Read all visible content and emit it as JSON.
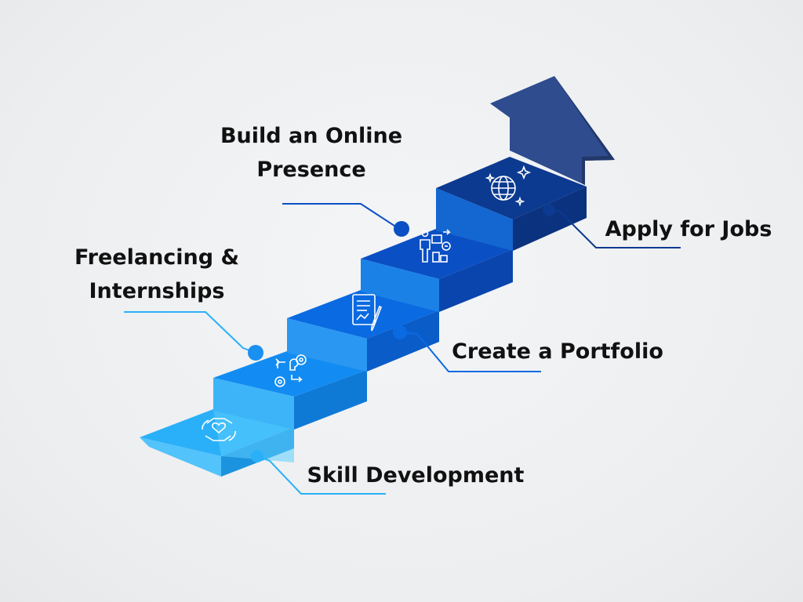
{
  "steps": [
    {
      "label_lines": [
        "Skill Development"
      ],
      "icon": "hands-heart-icon",
      "color": "#2ab0f8"
    },
    {
      "label_lines": [
        "Freelancing &",
        "Internships"
      ],
      "icon": "gears-lightbulb-icon",
      "color": "#128cf2"
    },
    {
      "label_lines": [
        "Create a Portfolio"
      ],
      "icon": "document-chart-icon",
      "color": "#0a6ae2"
    },
    {
      "label_lines": [
        "Build an Online",
        "Presence"
      ],
      "icon": "presenter-chart-icon",
      "color": "#0a4fc4"
    },
    {
      "label_lines": [
        "Apply for Jobs"
      ],
      "icon": "globe-sparkle-icon",
      "color": "#0c3a90"
    }
  ],
  "arrow": {
    "icon": "up-arrow-icon",
    "color": "#2e4c8e"
  }
}
